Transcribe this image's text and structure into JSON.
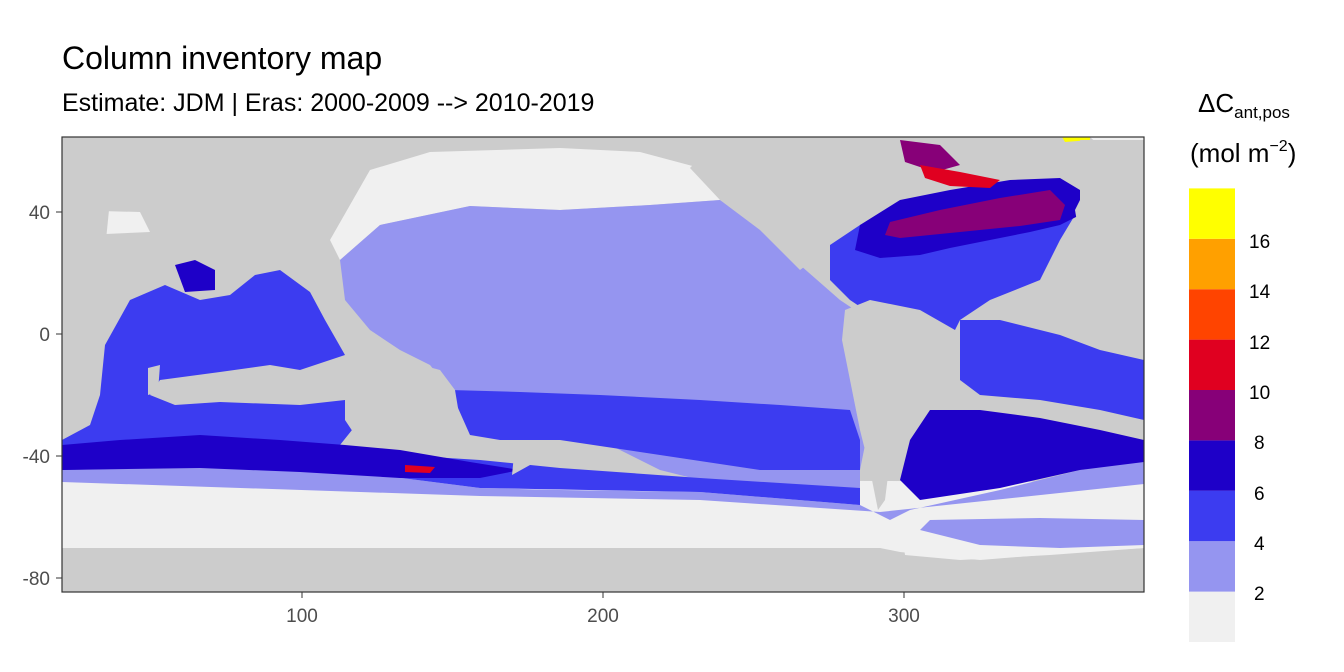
{
  "title": "Column inventory map",
  "subtitle": "Estimate: JDM  | Eras: 2000-2009 --> 2010-2019",
  "colors": {
    "land": "#cccccc",
    "ocean_none": "#f0f0f0",
    "bin_2_4": "#9595f0",
    "bin_4_6": "#3c3cf0",
    "bin_6_8": "#1e00c8",
    "bin_8_10": "#870078",
    "bin_10_12": "#e00020",
    "bin_12_14": "#ff4400",
    "bin_14_16": "#ffa000",
    "bin_16_plus": "#ffff00"
  },
  "axes": {
    "x_ticks": [
      "100",
      "200",
      "300"
    ],
    "y_ticks": [
      "40",
      "0",
      "-40",
      "-80"
    ],
    "x_range": [
      20,
      100,
      200,
      300,
      380
    ],
    "y_range": [
      -85,
      65
    ]
  },
  "legend": {
    "title_main": "ΔC",
    "title_sub": "ant,pos",
    "unit": "(mol m",
    "unit_exp": "−2",
    "unit_close": ")",
    "labels": [
      "2",
      "4",
      "6",
      "8",
      "10",
      "12",
      "14",
      "16"
    ],
    "bin_colors": [
      "#f0f0f0",
      "#9595f0",
      "#3c3cf0",
      "#1e00c8",
      "#870078",
      "#e00020",
      "#ff4400",
      "#ffa000",
      "#ffff00"
    ]
  }
}
